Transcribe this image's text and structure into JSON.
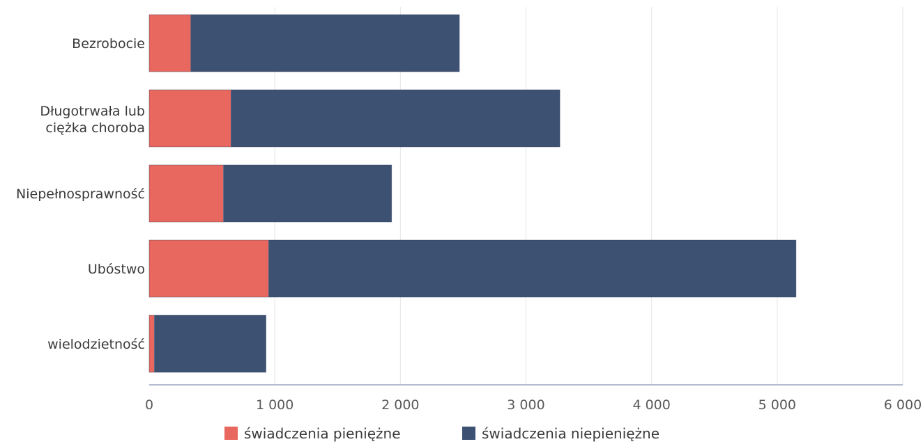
{
  "chart_data": {
    "type": "bar",
    "orientation": "horizontal",
    "stacked": true,
    "categories": [
      "Bezrobocie",
      "Długotrwała lub ciężka choroba",
      "Niepełnosprawność",
      "Ubóstwo",
      "wielodzietność"
    ],
    "series": [
      {
        "name": "świadczenia pieniężne",
        "color": "#e8675e",
        "values": [
          330,
          650,
          590,
          950,
          40
        ]
      },
      {
        "name": "świadczenia niepieniężne",
        "color": "#3d5173",
        "values": [
          2140,
          2620,
          1340,
          4200,
          890
        ]
      }
    ],
    "xlim": [
      0,
      6000
    ],
    "x_ticks": [
      0,
      1000,
      2000,
      3000,
      4000,
      5000,
      6000
    ],
    "x_tick_labels": [
      "0",
      "1 000",
      "2 000",
      "3 000",
      "4 000",
      "5 000",
      "6 000"
    ],
    "grid": "vertical",
    "legend_position": "bottom",
    "title": "",
    "xlabel": "",
    "ylabel": ""
  }
}
